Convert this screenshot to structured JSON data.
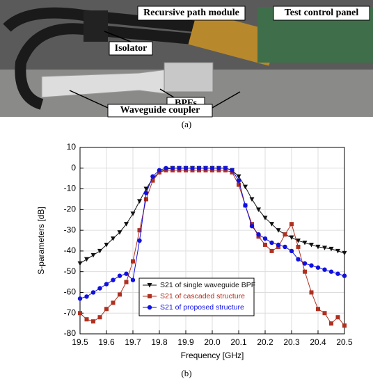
{
  "figure_a": {
    "labels": [
      "Recursive path module",
      "Test control panel",
      "Isolator",
      "BPFs",
      "Waveguide coupler"
    ],
    "caption": "(a)"
  },
  "chart_data": {
    "type": "line",
    "caption": "(b)",
    "x_label": "Frequency [GHz]",
    "y_label": "S-parameters [dB]",
    "xlim": [
      19.5,
      20.5
    ],
    "xticks": [
      19.5,
      19.6,
      19.7,
      19.8,
      19.9,
      {
        "value": 20,
        "label": "20.0"
      },
      20.1,
      20.2,
      20.3,
      20.4,
      20.5
    ],
    "ylim": [
      -80,
      10
    ],
    "yticks": [
      -80,
      -70,
      -60,
      -50,
      -40,
      -30,
      -20,
      -10,
      0,
      10
    ],
    "grid": true,
    "legend": "lower-left",
    "x": [
      19.5,
      19.525,
      19.55,
      19.575,
      19.6,
      19.625,
      19.65,
      19.675,
      19.7,
      19.725,
      19.75,
      19.775,
      19.8,
      19.825,
      19.85,
      19.875,
      19.9,
      19.925,
      19.95,
      19.975,
      20,
      20.025,
      20.05,
      20.075,
      20.1,
      20.125,
      20.15,
      20.175,
      20.2,
      20.225,
      20.25,
      20.275,
      20.3,
      20.325,
      20.35,
      20.375,
      20.4,
      20.425,
      20.45,
      20.475,
      20.5
    ],
    "series": [
      {
        "name": "S21 of single waveguide BPF",
        "color": "#111111",
        "marker": "triangle",
        "values": [
          -46,
          -44,
          -42,
          -40,
          -37,
          -34,
          -31,
          -27,
          -22,
          -16,
          -10,
          -5,
          -2,
          -0.5,
          0,
          0,
          0,
          0,
          0,
          0,
          0,
          0,
          0,
          -1,
          -4,
          -9,
          -15,
          -20,
          -24,
          -27,
          -30,
          -32,
          -33.5,
          -35,
          -36,
          -37,
          -38,
          -38.5,
          -39,
          -40,
          -41
        ]
      },
      {
        "name": "S21 of cascaded structure",
        "color": "#b03020",
        "marker": "square",
        "values": [
          -70,
          -73,
          -74,
          -72,
          -68,
          -65,
          -61,
          -55,
          -45,
          -30,
          -15,
          -6,
          -2,
          -1,
          -1,
          -1,
          -1,
          -1,
          -1,
          -1,
          -1,
          -1,
          -1,
          -2,
          -8,
          -18,
          -27,
          -33,
          -37,
          -40,
          -38,
          -32,
          -27,
          -38,
          -50,
          -60,
          -68,
          -70,
          -75,
          -72,
          -76
        ]
      },
      {
        "name": "S21 of proposed structure",
        "color": "#1010e0",
        "marker": "circle",
        "values": [
          -63,
          -62,
          -60,
          -58,
          -56,
          -54,
          -52,
          -51,
          -54,
          -35,
          -12,
          -4,
          -1,
          0,
          0,
          0,
          0,
          0,
          0,
          0,
          0,
          0,
          0,
          -1,
          -6,
          -18,
          -28,
          -32,
          -34,
          -36,
          -37,
          -38,
          -40,
          -44,
          -46,
          -47,
          -48,
          -49,
          -50,
          -51,
          -52
        ]
      }
    ]
  }
}
